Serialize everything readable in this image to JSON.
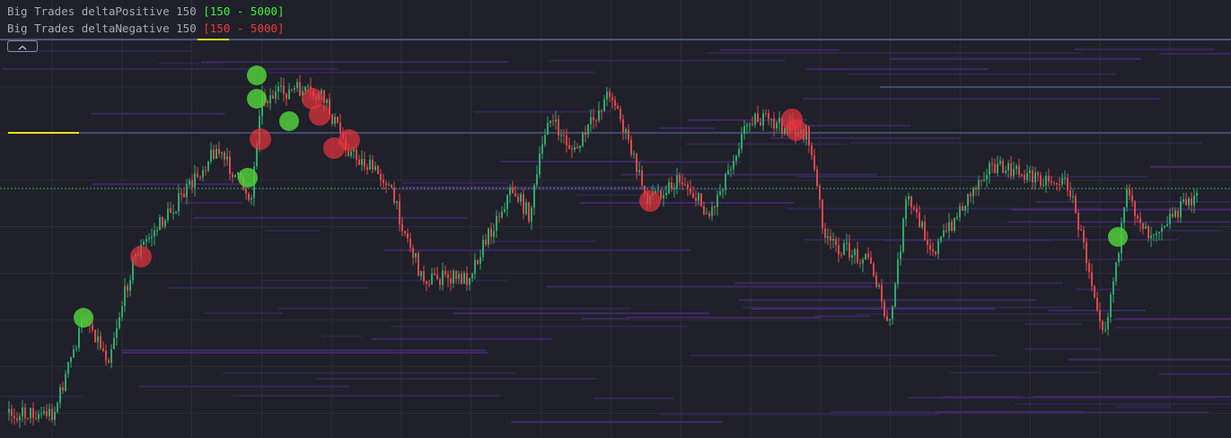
{
  "legend": {
    "items": [
      {
        "label": "Big Trades deltaPositive 150",
        "range": "[150 - 5000]"
      },
      {
        "label": "Big Trades deltaNegative 150",
        "range": "[150 - 5000]"
      }
    ]
  }
}
